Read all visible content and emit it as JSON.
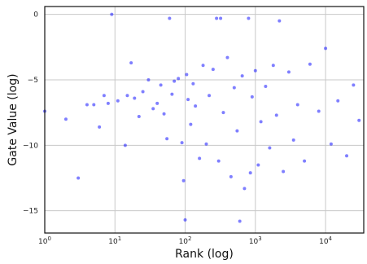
{
  "chart_data": {
    "type": "scatter",
    "title": "",
    "xlabel": "Rank (log)",
    "ylabel": "Gate Value (log)",
    "xscale": "log",
    "xlim": [
      1,
      35000
    ],
    "ylim": [
      -16.7,
      0.6
    ],
    "grid": true,
    "x_ticks": [
      1,
      10,
      100,
      1000,
      10000
    ],
    "x_tick_labels": [
      {
        "base": "10",
        "exp": "0"
      },
      {
        "base": "10",
        "exp": "1"
      },
      {
        "base": "10",
        "exp": "2"
      },
      {
        "base": "10",
        "exp": "3"
      },
      {
        "base": "10",
        "exp": "4"
      }
    ],
    "y_ticks": [
      0,
      -5,
      -10,
      -15
    ],
    "y_tick_labels": [
      "0",
      "−5",
      "−10",
      "−15"
    ],
    "marker_color": "#0000ff",
    "marker_alpha": 0.5,
    "series": [
      {
        "points": [
          [
            1,
            -7.4
          ],
          [
            2,
            -8.0
          ],
          [
            3,
            -12.5
          ],
          [
            4,
            -6.9
          ],
          [
            5,
            -6.9
          ],
          [
            6,
            -8.6
          ],
          [
            7,
            -6.2
          ],
          [
            8,
            -6.8
          ],
          [
            9,
            0.0
          ],
          [
            11,
            -6.6
          ],
          [
            14,
            -10.0
          ],
          [
            15,
            -6.2
          ],
          [
            17,
            -3.7
          ],
          [
            19,
            -6.4
          ],
          [
            22,
            -7.8
          ],
          [
            25,
            -5.9
          ],
          [
            30,
            -5.0
          ],
          [
            35,
            -7.2
          ],
          [
            40,
            -6.8
          ],
          [
            45,
            -5.4
          ],
          [
            50,
            -7.6
          ],
          [
            55,
            -9.5
          ],
          [
            60,
            -0.3
          ],
          [
            65,
            -6.1
          ],
          [
            70,
            -5.1
          ],
          [
            80,
            -4.9
          ],
          [
            90,
            -9.8
          ],
          [
            95,
            -12.7
          ],
          [
            100,
            -15.7
          ],
          [
            105,
            -4.6
          ],
          [
            110,
            -6.5
          ],
          [
            120,
            -8.4
          ],
          [
            130,
            -5.3
          ],
          [
            140,
            -7.0
          ],
          [
            160,
            -11.0
          ],
          [
            180,
            -3.9
          ],
          [
            200,
            -9.9
          ],
          [
            220,
            -6.2
          ],
          [
            250,
            -4.2
          ],
          [
            280,
            -0.3
          ],
          [
            300,
            -11.2
          ],
          [
            320,
            -0.3
          ],
          [
            350,
            -7.5
          ],
          [
            400,
            -3.3
          ],
          [
            450,
            -12.4
          ],
          [
            500,
            -5.6
          ],
          [
            550,
            -8.9
          ],
          [
            600,
            -15.8
          ],
          [
            650,
            -4.7
          ],
          [
            700,
            -13.3
          ],
          [
            800,
            -0.3
          ],
          [
            850,
            -12.1
          ],
          [
            900,
            -6.3
          ],
          [
            1000,
            -4.3
          ],
          [
            1100,
            -11.5
          ],
          [
            1200,
            -8.2
          ],
          [
            1400,
            -5.5
          ],
          [
            1600,
            -10.2
          ],
          [
            1800,
            -3.9
          ],
          [
            2000,
            -7.7
          ],
          [
            2200,
            -0.5
          ],
          [
            2500,
            -12.0
          ],
          [
            3000,
            -4.4
          ],
          [
            3500,
            -9.6
          ],
          [
            4000,
            -6.9
          ],
          [
            5000,
            -11.2
          ],
          [
            6000,
            -3.8
          ],
          [
            8000,
            -7.4
          ],
          [
            10000,
            -2.6
          ],
          [
            12000,
            -9.9
          ],
          [
            15000,
            -6.6
          ],
          [
            20000,
            -10.8
          ],
          [
            25000,
            -5.4
          ],
          [
            30000,
            -8.1
          ]
        ]
      }
    ]
  }
}
